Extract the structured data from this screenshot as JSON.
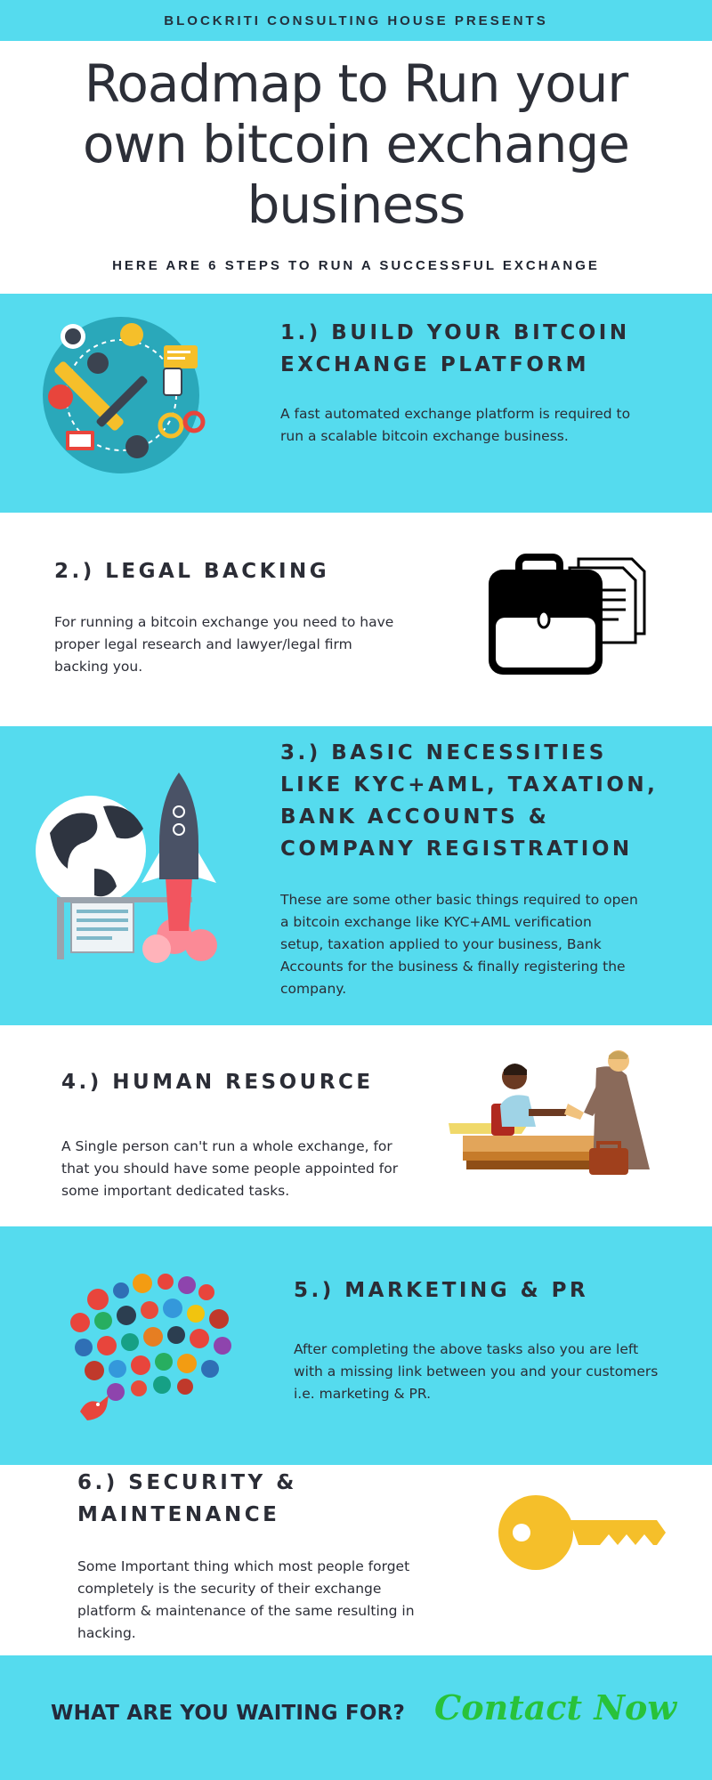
{
  "header": {
    "presenter": "BLOCKRITI CONSULTING HOUSE PRESENTS",
    "title_lines": [
      "Roadmap to Run your",
      "own bitcoin exchange",
      "business"
    ],
    "subtitle": "HERE ARE 6 STEPS TO RUN A SUCCESSFUL EXCHANGE"
  },
  "steps": [
    {
      "heading_lines": [
        "1.) BUILD YOUR BITCOIN",
        "EXCHANGE PLATFORM"
      ],
      "body_lines": [
        "A fast automated exchange platform is required to",
        "run a scalable bitcoin exchange business."
      ],
      "icon": "tools-network-icon"
    },
    {
      "heading_lines": [
        "2.) LEGAL BACKING"
      ],
      "body_lines": [
        "For running a bitcoin exchange you need to have",
        "proper legal research and lawyer/legal firm",
        "backing you."
      ],
      "icon": "briefcase-documents-icon"
    },
    {
      "heading_lines": [
        "3.) BASIC NECESSITIES",
        "LIKE KYC+AML, TAXATION,",
        "BANK ACCOUNTS &",
        "COMPANY REGISTRATION"
      ],
      "body_lines": [
        "These are some other basic things required to open",
        "a bitcoin exchange like KYC+AML verification",
        "setup, taxation applied to your business, Bank",
        "Accounts for the business & finally registering the",
        "company."
      ],
      "icon": "globe-rocket-icon"
    },
    {
      "heading_lines": [
        "4.) HUMAN RESOURCE"
      ],
      "body_lines": [
        "A Single person can't run a whole exchange, for",
        "that you should have some people appointed for",
        "some important dedicated tasks."
      ],
      "icon": "handshake-meeting-icon"
    },
    {
      "heading_lines": [
        "5.) MARKETING & PR"
      ],
      "body_lines": [
        "After completing the above tasks also you are left",
        "with a missing link between you and your customers",
        "i.e. marketing & PR."
      ],
      "icon": "social-media-bubble-icon"
    },
    {
      "heading_lines": [
        "6.) SECURITY &",
        "MAINTENANCE"
      ],
      "body_lines": [
        "Some Important thing which most people forget",
        "completely is the  security of their exchange",
        "platform & maintenance of the same resulting in",
        "hacking."
      ],
      "icon": "key-icon"
    }
  ],
  "footer": {
    "question": "WHAT ARE YOU WAITING FOR?",
    "cta": "Contact Now"
  },
  "colors": {
    "accent_band": "#55dbee",
    "text_dark": "#2b2d36",
    "cta_green": "#28c23a",
    "key_yellow": "#f5bf2a"
  }
}
